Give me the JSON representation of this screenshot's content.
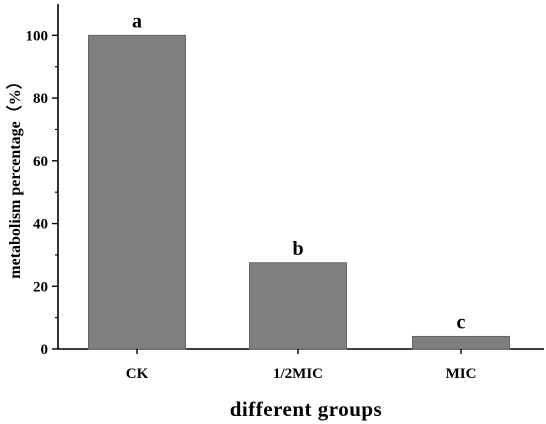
{
  "chart_data": {
    "type": "bar",
    "categories": [
      "CK",
      "1/2MIC",
      "MIC"
    ],
    "values": [
      100,
      27.5,
      4
    ],
    "significance_labels": [
      "a",
      "b",
      "c"
    ],
    "title": "",
    "xlabel": "different groups",
    "ylabel": "metabolism percentage（%）",
    "ylim": [
      0,
      110
    ],
    "yticks": [
      0,
      20,
      40,
      60,
      80,
      100
    ],
    "ytick_labels": [
      "0",
      "20",
      "40",
      "60",
      "80",
      "100"
    ],
    "grid": false,
    "bar_color": "#7f7f7f",
    "bar_edge_color": "#666666"
  }
}
